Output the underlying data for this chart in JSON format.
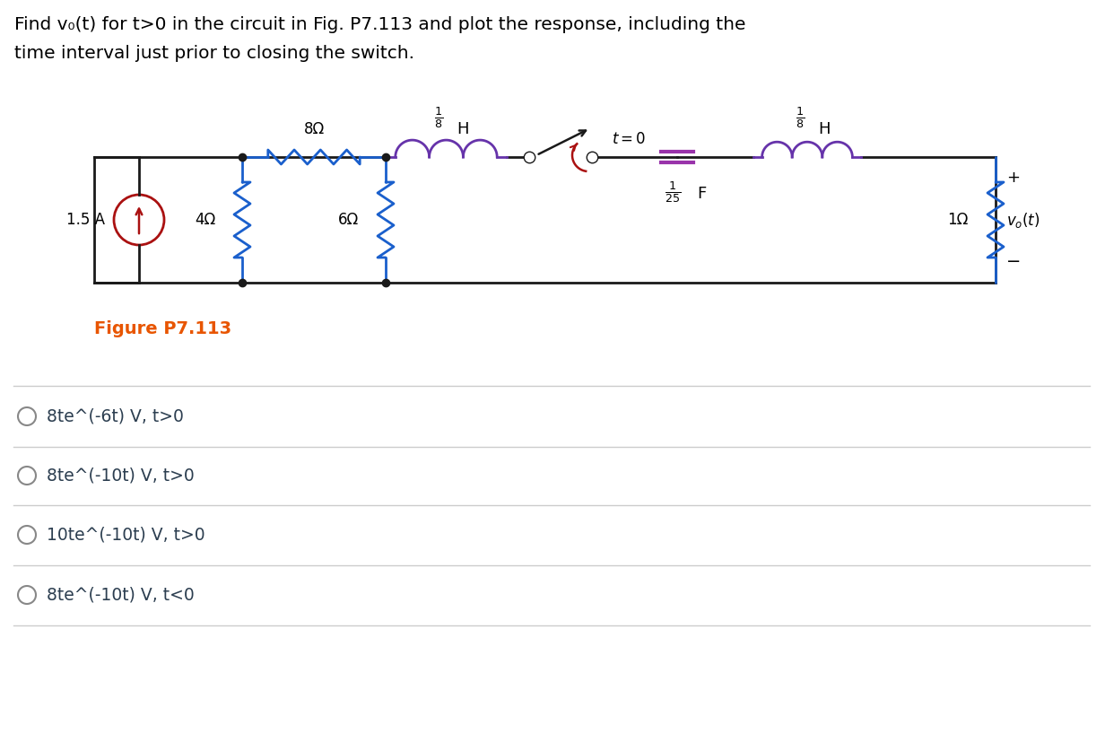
{
  "title_line1": "Find v₀(t) for t>0 in the circuit in Fig. P7.113 and plot the response, including the",
  "title_line2": "time interval just prior to closing the switch.",
  "figure_label": "Figure P7.113",
  "options": [
    "8te^(-6t) V, t>0",
    "8te^(-10t) V, t>0",
    "10te^(-10t) V, t>0",
    "8te^(-10t) V, t<0"
  ],
  "bg_color": "#ffffff",
  "text_color": "#000000",
  "figure_label_color": "#e85500",
  "wire_color": "#1a1a1a",
  "resistor_color": "#1a5fcc",
  "inductor_color": "#6633aa",
  "capacitor_color": "#9933aa",
  "cs_color": "#aa1111",
  "switch_color": "#1a1a1a",
  "switch_arc_color": "#aa1111",
  "option_circle_color": "#888888",
  "option_text_color": "#2c3e50",
  "sep_color": "#cccccc"
}
